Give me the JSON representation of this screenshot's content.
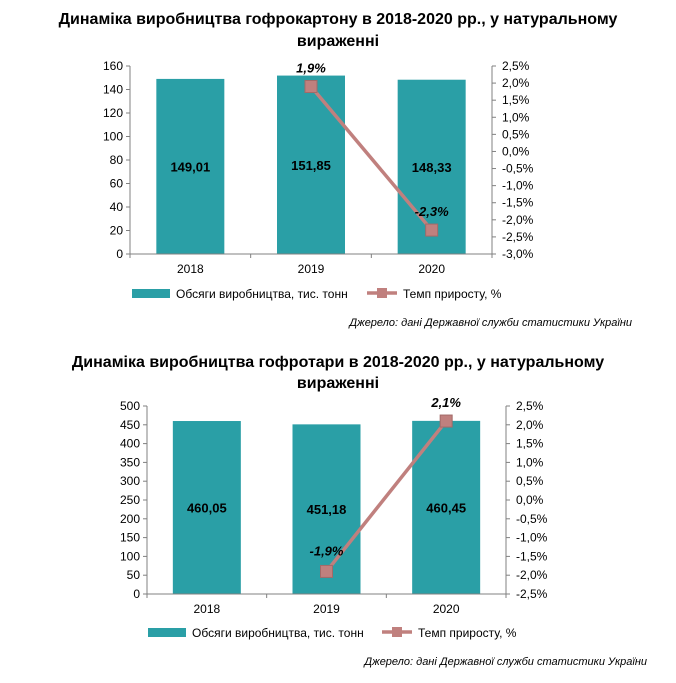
{
  "chart_data": [
    {
      "type": "bar",
      "title_lines": [
        "Динаміка виробництва гофрокартону в 2018-2020 рр., у натуральному",
        "вираженні"
      ],
      "categories": [
        "2018",
        "2019",
        "2020"
      ],
      "series": [
        {
          "name": "Обсяги виробництва,  тис. тонн",
          "axis": "left",
          "type": "bar",
          "color": "#2a9fa6",
          "values": [
            149.01,
            151.85,
            148.33
          ],
          "labels": [
            "149,01",
            "151,85",
            "148,33"
          ]
        },
        {
          "name": "Темп приросту, %",
          "axis": "right",
          "type": "line",
          "color": "#c0807e",
          "x": [
            "2019",
            "2020"
          ],
          "values": [
            1.9,
            -2.3
          ],
          "labels": [
            "1,9%",
            "-2,3%"
          ]
        }
      ],
      "y_left": {
        "min": 0,
        "max": 160,
        "ticks": [
          "0",
          "20",
          "40",
          "60",
          "80",
          "100",
          "120",
          "140",
          "160"
        ]
      },
      "y_right": {
        "min": -3.0,
        "max": 2.5,
        "ticks": [
          "-3,0%",
          "-2,5%",
          "-2,0%",
          "-1,5%",
          "-1,0%",
          "-0,5%",
          "0,0%",
          "0,5%",
          "1,0%",
          "1,5%",
          "2,0%",
          "2,5%"
        ]
      },
      "grid": false,
      "legend": "bottom",
      "source": "Джерело: дані Державної служби статистики України"
    },
    {
      "type": "bar",
      "title_lines": [
        "Динаміка виробництва гофротари в 2018-2020 рр., у натуральному",
        "вираженні"
      ],
      "categories": [
        "2018",
        "2019",
        "2020"
      ],
      "series": [
        {
          "name": "Обсяги виробництва,  тис. тонн",
          "axis": "left",
          "type": "bar",
          "color": "#2a9fa6",
          "values": [
            460.05,
            451.18,
            460.45
          ],
          "labels": [
            "460,05",
            "451,18",
            "460,45"
          ]
        },
        {
          "name": "Темп приросту,  %",
          "axis": "right",
          "type": "line",
          "color": "#c0807e",
          "x": [
            "2019",
            "2020"
          ],
          "values": [
            -1.9,
            2.1
          ],
          "labels": [
            "-1,9%",
            "2,1%"
          ]
        }
      ],
      "y_left": {
        "min": 0,
        "max": 500,
        "ticks": [
          "0",
          "50",
          "100",
          "150",
          "200",
          "250",
          "300",
          "350",
          "400",
          "450",
          "500"
        ]
      },
      "y_right": {
        "min": -2.5,
        "max": 2.5,
        "ticks": [
          "-2,5%",
          "-2,0%",
          "-1,5%",
          "-1,0%",
          "-0,5%",
          "0,0%",
          "0,5%",
          "1,0%",
          "1,5%",
          "2,0%",
          "2,5%"
        ]
      },
      "grid": false,
      "legend": "bottom",
      "source": "Джерело: дані Державної служби статистики України"
    }
  ]
}
